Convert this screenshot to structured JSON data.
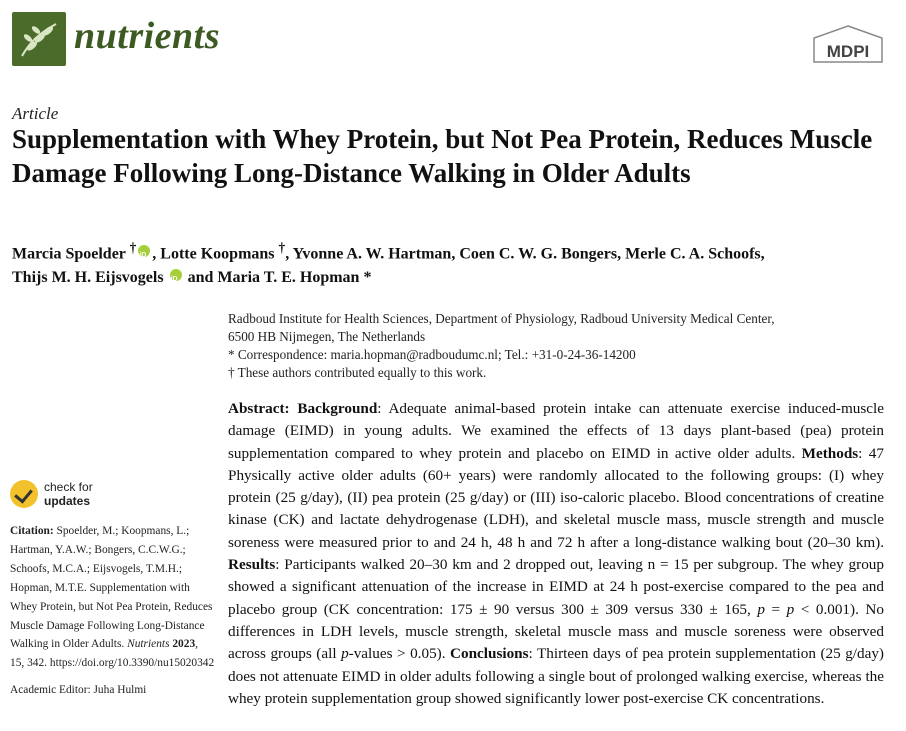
{
  "journal": {
    "name": "nutrients",
    "publisher": "MDPI"
  },
  "article_type": "Article",
  "title": "Supplementation with Whey Protein, but Not Pea Protein, Reduces Muscle Damage Following Long-Distance Walking in Older Adults",
  "authors": {
    "a1": "Marcia Spoelder",
    "a1_mark": "†",
    "a2": "Lotte Koopmans",
    "a2_mark": "†",
    "a3": "Yvonne A. W. Hartman",
    "a4": "Coen C. W. G. Bongers",
    "a5": "Merle C. A. Schoofs",
    "a6": "Thijs M. H. Eijsvogels",
    "a7": "Maria T. E. Hopman",
    "a7_mark": "*",
    "conj": "and"
  },
  "affiliation": {
    "line1": "Radboud Institute for Health Sciences, Department of Physiology, Radboud University Medical Center,",
    "line2": "6500 HB Nijmegen, The Netherlands",
    "correspondence": "*  Correspondence: maria.hopman@radboudumc.nl; Tel.: +31-0-24-36-14200",
    "equal": "†  These authors contributed equally to this work."
  },
  "abstract": {
    "label": "Abstract:",
    "bg_label": "Background",
    "bg_text": ": Adequate animal-based protein intake can attenuate exercise induced-muscle damage (EIMD) in young adults.  We examined the effects of 13 days plant-based (pea) protein supplementation compared to whey protein and placebo on EIMD in active older adults. ",
    "methods_label": "Methods",
    "methods_text": ": 47 Physically active older adults (60+ years) were randomly allocated to the following groups: (I) whey protein (25 g/day), (II) pea protein (25 g/day) or (III) iso-caloric placebo. Blood concentrations of creatine kinase (CK) and lactate dehydrogenase (LDH), and skeletal muscle mass, muscle strength and muscle soreness were measured prior to and 24 h, 48 h and 72 h after a long-distance walking bout (20–30 km). ",
    "results_label": "Results",
    "results_text_1": ": Participants walked 20–30 km and 2 dropped out, leaving n = 15 per subgroup. The whey group showed a significant attenuation of the increase in EIMD at 24 h post-exercise compared to the pea and placebo group (CK concentration: 175 ± 90 versus 300 ± 309 versus 330 ± 165, ",
    "p_italic": "p",
    "results_text_2": " = ",
    "p_italic2": "p",
    "results_text_3": " < 0.001). No differences in LDH levels, muscle strength, skeletal muscle mass and muscle soreness were observed across groups (all ",
    "p_italic3": "p",
    "results_text_4": "-values > 0.05).  ",
    "conclusions_label": "Conclusions",
    "conclusions_text": ": Thirteen days of pea protein supplementation (25 g/day) does not attenuate EIMD in older adults following a single bout of prolonged walking exercise, whereas the whey protein supplementation group showed significantly lower post-exercise CK concentrations."
  },
  "sidebar": {
    "check_line1": "check for",
    "check_line2": "updates",
    "citation_label": "Citation:",
    "citation_text": " Spoelder, M.; Koopmans, L.; Hartman, Y.A.W.; Bongers, C.C.W.G.; Schoofs, M.C.A.; Eijsvogels, T.M.H.; Hopman, M.T.E. Supplementation with Whey Protein, but Not Pea Protein, Reduces Muscle Damage Following Long-Distance Walking in Older Adults. ",
    "citation_journal": "Nutrients",
    "citation_year": "2023",
    "citation_rest": ", 15, 342. https://doi.org/10.3390/nu15020342",
    "editor": "Academic Editor: Juha Hulmi"
  },
  "colors": {
    "brand_green": "#3d5a22",
    "orcid_green": "#a6ce39",
    "check_yellow": "#f3c12c"
  }
}
